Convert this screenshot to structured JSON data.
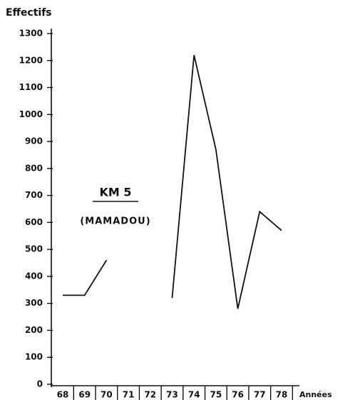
{
  "chart_data": {
    "type": "line",
    "y_label": "Effectifs",
    "x_label": "Années",
    "annotations": [
      "KM 5",
      "(MAMADOU)"
    ],
    "categories": [
      "68",
      "69",
      "70",
      "71",
      "72",
      "73",
      "74",
      "75",
      "76",
      "77",
      "78"
    ],
    "series": [
      {
        "color": "#111111",
        "values": [
          330,
          330,
          460,
          null,
          null,
          320,
          1220,
          870,
          280,
          640,
          570
        ]
      }
    ],
    "ylim": [
      0,
      1300
    ],
    "yticks": [
      0,
      100,
      200,
      300,
      400,
      500,
      600,
      700,
      800,
      900,
      1000,
      1100,
      1200,
      1300
    ]
  }
}
